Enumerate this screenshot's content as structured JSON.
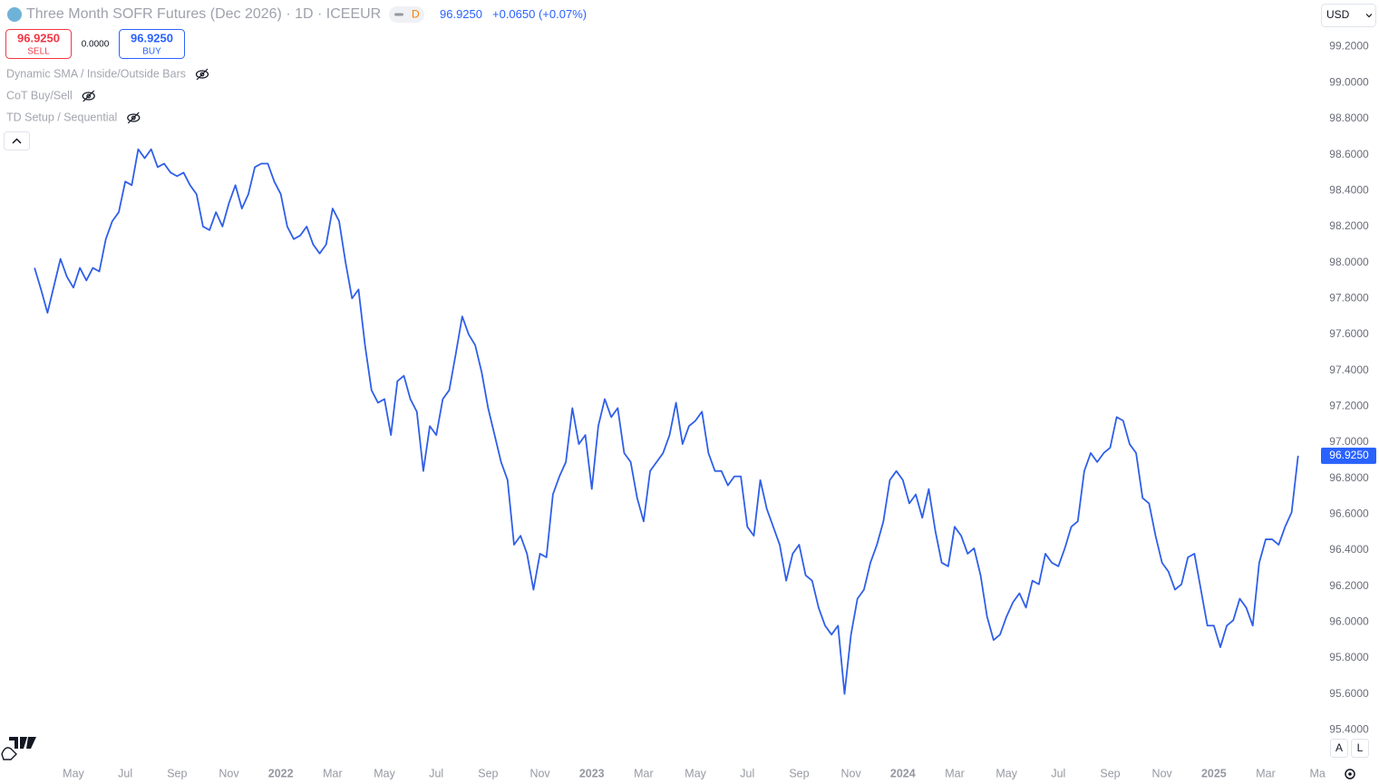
{
  "header": {
    "title": "Three Month SOFR Futures (Dec 2026) · 1D · ICEEUR",
    "badge": "D",
    "price": "96.9250",
    "change": "+0.0650 (+0.07%)",
    "sell_price": "96.9250",
    "sell": "SELL",
    "spread": "0.0000",
    "buy_price": "96.9250",
    "buy": "BUY",
    "indicators": [
      "Dynamic SMA / Inside/Outside Bars",
      "CoT Buy/Sell",
      "TD Setup / Sequential"
    ],
    "currency": "USD",
    "auto": "A",
    "log": "L"
  },
  "chart_data": {
    "type": "line",
    "color": "#2f5fe8",
    "categories": [
      null,
      null,
      null,
      null,
      null,
      null,
      "May",
      null,
      null,
      null,
      null,
      null,
      null,
      null,
      "Jul",
      null,
      null,
      null,
      null,
      null,
      null,
      null,
      "Sep",
      null,
      null,
      null,
      null,
      null,
      null,
      null,
      "Nov",
      null,
      null,
      null,
      null,
      null,
      null,
      null,
      "2022",
      null,
      null,
      null,
      null,
      null,
      null,
      null,
      "Mar",
      null,
      null,
      null,
      null,
      null,
      null,
      null,
      "May",
      null,
      null,
      null,
      null,
      null,
      null,
      null,
      "Jul",
      null,
      null,
      null,
      null,
      null,
      null,
      null,
      "Sep",
      null,
      null,
      null,
      null,
      null,
      null,
      null,
      "Nov",
      null,
      null,
      null,
      null,
      null,
      null,
      null,
      "2023",
      null,
      null,
      null,
      null,
      null,
      null,
      null,
      "Mar",
      null,
      null,
      null,
      null,
      null,
      null,
      null,
      "May",
      null,
      null,
      null,
      null,
      null,
      null,
      null,
      "Jul",
      null,
      null,
      null,
      null,
      null,
      null,
      null,
      "Sep",
      null,
      null,
      null,
      null,
      null,
      null,
      null,
      "Nov",
      null,
      null,
      null,
      null,
      null,
      null,
      null,
      "2024",
      null,
      null,
      null,
      null,
      null,
      null,
      null,
      "Mar",
      null,
      null,
      null,
      null,
      null,
      null,
      null,
      "May",
      null,
      null,
      null,
      null,
      null,
      null,
      null,
      "Jul",
      null,
      null,
      null,
      null,
      null,
      null,
      null,
      "Sep",
      null,
      null,
      null,
      null,
      null,
      null,
      null,
      "Nov",
      null,
      null,
      null,
      null,
      null,
      null,
      null,
      "2025",
      null,
      null,
      null,
      null,
      null,
      null,
      null,
      "Mar",
      null,
      null,
      null,
      null,
      null,
      null,
      null,
      "Ma"
    ],
    "values": [
      97.97,
      97.85,
      97.72,
      97.87,
      98.02,
      97.92,
      97.86,
      97.97,
      97.9,
      97.97,
      97.95,
      98.13,
      98.23,
      98.28,
      98.45,
      98.43,
      98.63,
      98.58,
      98.63,
      98.53,
      98.55,
      98.5,
      98.48,
      98.5,
      98.43,
      98.38,
      98.2,
      98.18,
      98.28,
      98.2,
      98.33,
      98.43,
      98.3,
      98.38,
      98.53,
      98.55,
      98.55,
      98.45,
      98.38,
      98.2,
      98.13,
      98.15,
      98.2,
      98.1,
      98.05,
      98.1,
      98.3,
      98.23,
      98.0,
      97.8,
      97.85,
      97.54,
      97.29,
      97.22,
      97.24,
      97.04,
      97.34,
      97.37,
      97.24,
      97.17,
      96.84,
      97.09,
      97.04,
      97.24,
      97.29,
      97.49,
      97.7,
      97.6,
      97.54,
      97.39,
      97.19,
      97.04,
      96.89,
      96.79,
      96.43,
      96.48,
      96.38,
      96.18,
      96.38,
      96.36,
      96.71,
      96.81,
      96.89,
      97.19,
      96.99,
      97.04,
      96.74,
      97.09,
      97.24,
      97.14,
      97.19,
      96.94,
      96.89,
      96.69,
      96.56,
      96.84,
      96.89,
      96.94,
      97.04,
      97.22,
      96.99,
      97.09,
      97.12,
      97.17,
      96.94,
      96.84,
      96.84,
      96.76,
      96.81,
      96.81,
      96.53,
      96.48,
      96.79,
      96.63,
      96.53,
      96.43,
      96.23,
      96.38,
      96.43,
      96.26,
      96.23,
      96.08,
      95.98,
      95.93,
      95.98,
      95.6,
      95.93,
      96.13,
      96.18,
      96.33,
      96.43,
      96.56,
      96.79,
      96.84,
      96.79,
      96.66,
      96.71,
      96.58,
      96.74,
      96.51,
      96.33,
      96.31,
      96.53,
      96.48,
      96.38,
      96.41,
      96.26,
      96.03,
      95.9,
      95.93,
      96.03,
      96.11,
      96.16,
      96.08,
      96.23,
      96.21,
      96.38,
      96.33,
      96.31,
      96.41,
      96.53,
      96.56,
      96.84,
      96.94,
      96.89,
      96.94,
      96.97,
      97.14,
      97.12,
      96.99,
      96.94,
      96.69,
      96.66,
      96.48,
      96.33,
      96.28,
      96.18,
      96.21,
      96.36,
      96.38,
      96.18,
      95.98,
      95.98,
      95.86,
      95.98,
      96.01,
      96.13,
      96.08,
      95.98,
      96.33,
      96.46,
      96.46,
      96.43,
      96.53,
      96.61,
      96.925,
      null,
      null,
      null
    ],
    "ylim": [
      95.21,
      99.46
    ],
    "yticks": [
      {
        "value": 95.4,
        "label": "95.4000"
      },
      {
        "value": 95.6,
        "label": "95.6000"
      },
      {
        "value": 95.8,
        "label": "95.8000"
      },
      {
        "value": 96.0,
        "label": "96.0000"
      },
      {
        "value": 96.2,
        "label": "96.2000"
      },
      {
        "value": 96.4,
        "label": "96.4000"
      },
      {
        "value": 96.6,
        "label": "96.6000"
      },
      {
        "value": 96.8,
        "label": "96.8000"
      },
      {
        "value": 97.0,
        "label": "97.0000"
      },
      {
        "value": 97.2,
        "label": "97.2000"
      },
      {
        "value": 97.4,
        "label": "97.4000"
      },
      {
        "value": 97.6,
        "label": "97.6000"
      },
      {
        "value": 97.8,
        "label": "97.8000"
      },
      {
        "value": 98.0,
        "label": "98.0000"
      },
      {
        "value": 98.2,
        "label": "98.2000"
      },
      {
        "value": 98.4,
        "label": "98.4000"
      },
      {
        "value": 98.6,
        "label": "98.6000"
      },
      {
        "value": 98.8,
        "label": "98.8000"
      },
      {
        "value": 99.0,
        "label": "99.0000"
      },
      {
        "value": 99.2,
        "label": "99.2000"
      }
    ],
    "grid": false
  }
}
